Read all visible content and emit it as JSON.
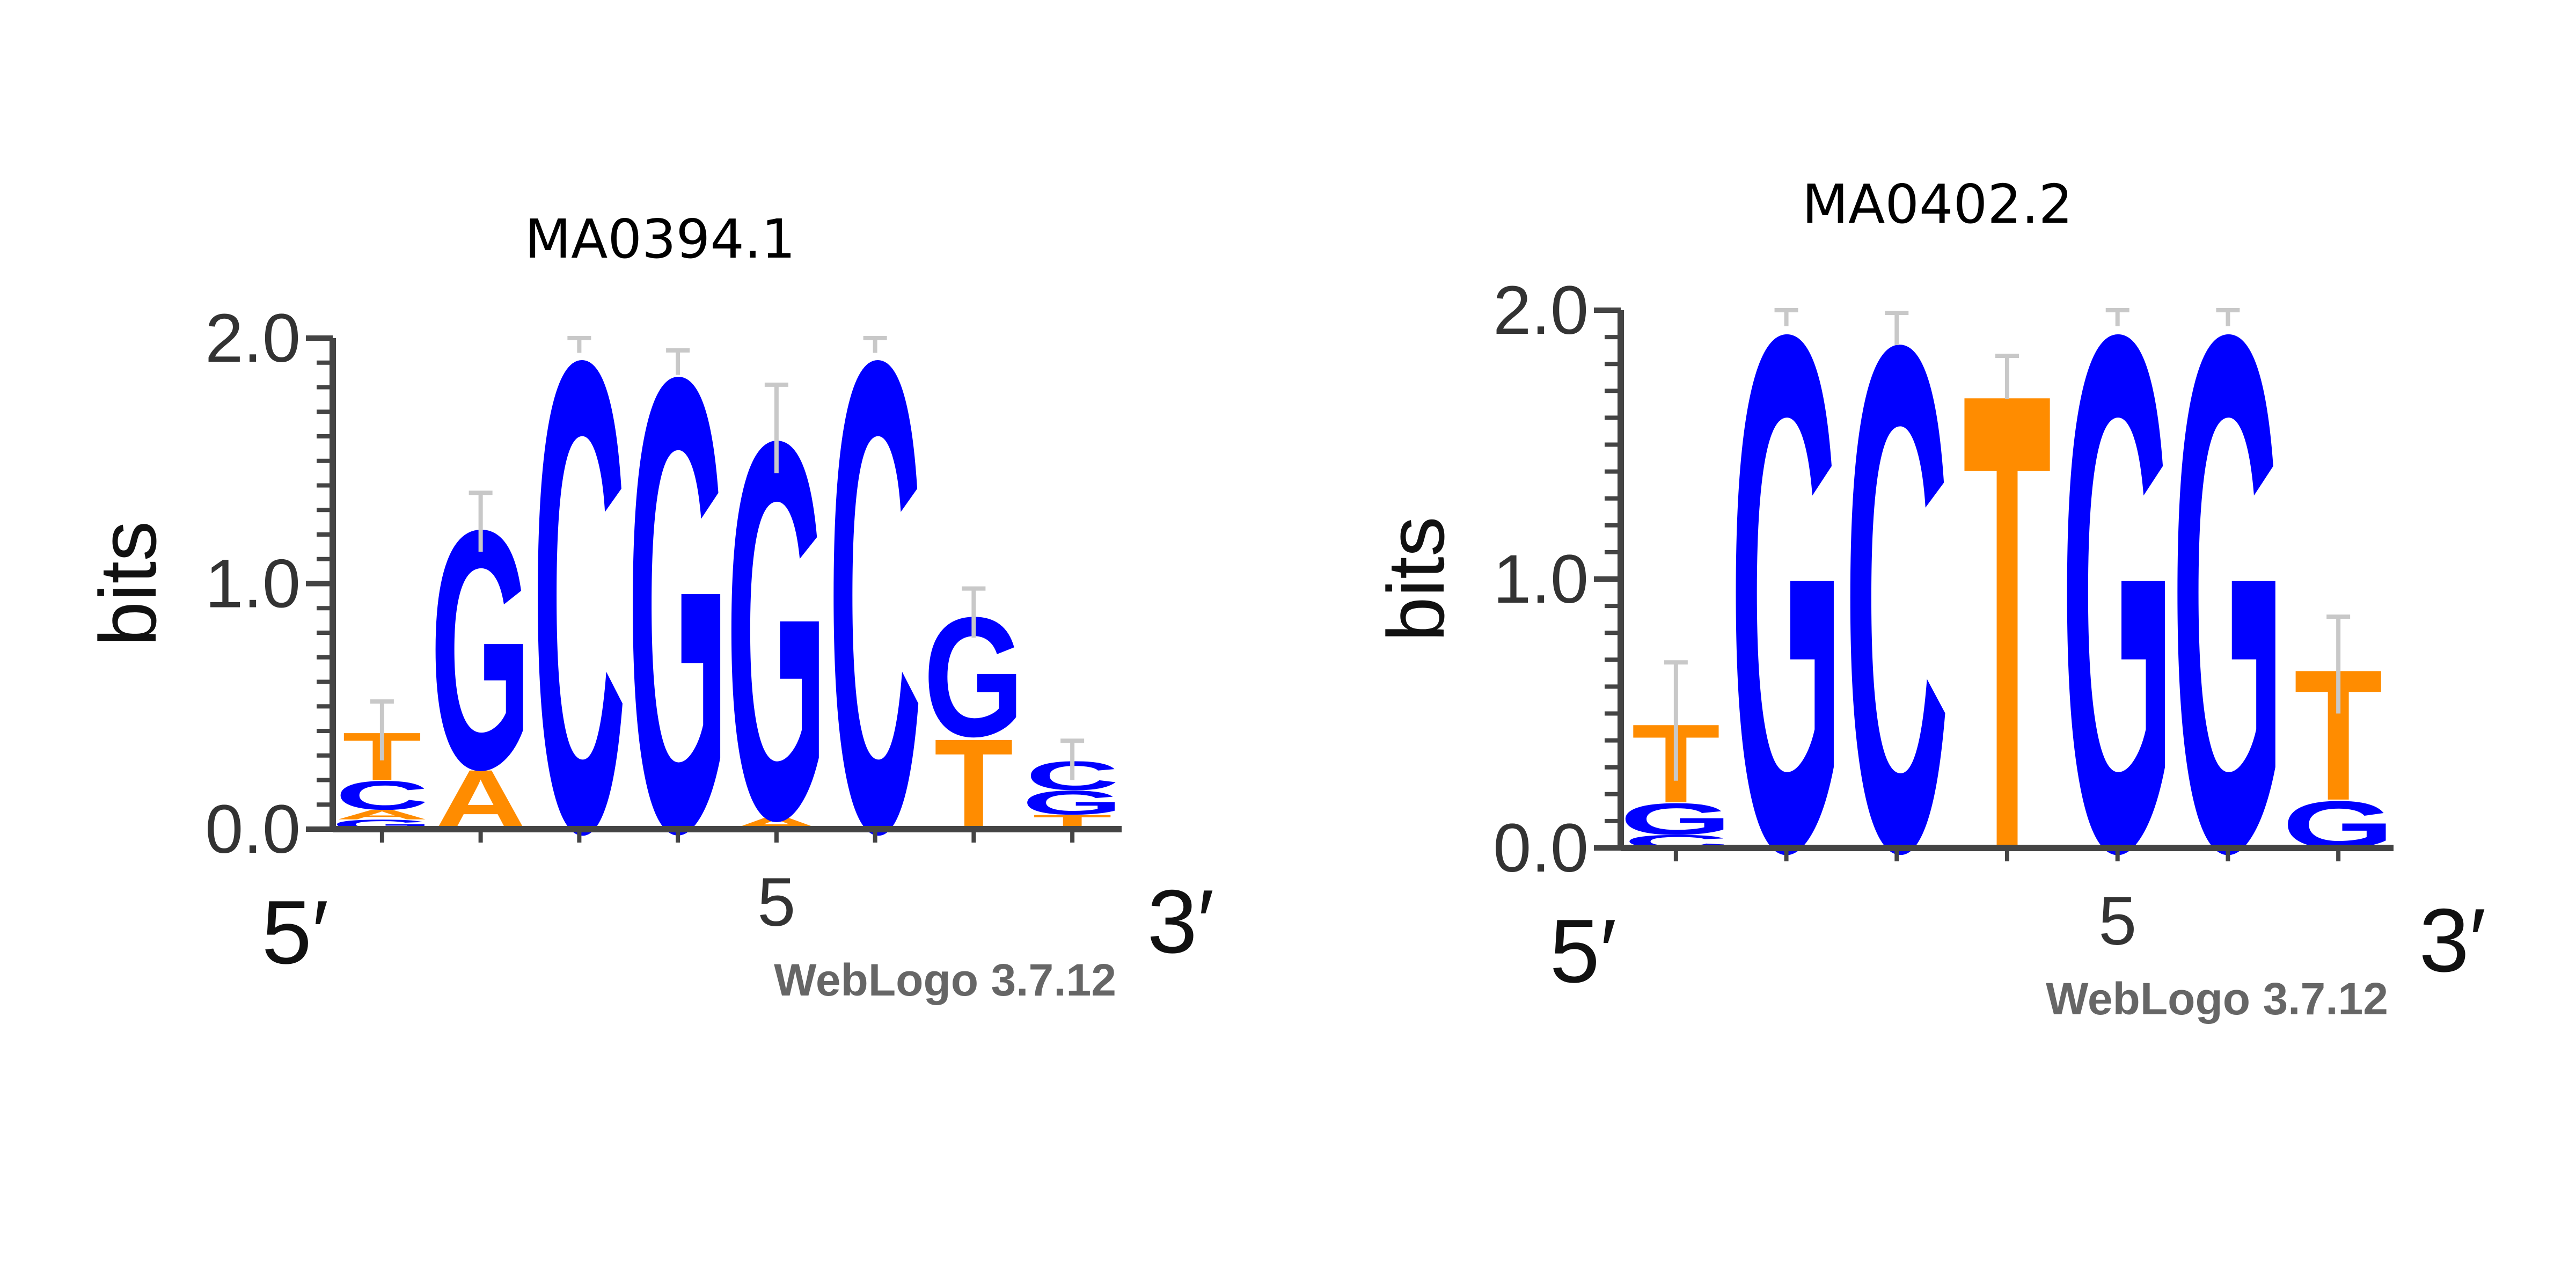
{
  "chart_data": [
    {
      "type": "sequence-logo",
      "title": "MA0394.1",
      "ylabel": "bits",
      "ylim": [
        0,
        2
      ],
      "yticks": [
        "0.0",
        "1.0",
        "2.0"
      ],
      "x_ticks": [
        {
          "position": 5,
          "label": "5"
        }
      ],
      "left_label": "5′",
      "right_label": "3′",
      "credit": "WebLogo 3.7.12",
      "positions": [
        {
          "pos": 1,
          "stack": [
            {
              "base": "G",
              "bits": 0.04
            },
            {
              "base": "A",
              "bits": 0.04
            },
            {
              "base": "C",
              "bits": 0.12
            },
            {
              "base": "T",
              "bits": 0.2
            }
          ],
          "error": 0.12
        },
        {
          "pos": 2,
          "stack": [
            {
              "base": "A",
              "bits": 0.25
            },
            {
              "base": "G",
              "bits": 1.0
            }
          ],
          "error": 0.12
        },
        {
          "pos": 3,
          "stack": [
            {
              "base": "C",
              "bits": 1.97
            }
          ],
          "error": 0.03
        },
        {
          "pos": 4,
          "stack": [
            {
              "base": "G",
              "bits": 1.9
            }
          ],
          "error": 0.05
        },
        {
          "pos": 5,
          "stack": [
            {
              "base": "A",
              "bits": 0.05
            },
            {
              "base": "G",
              "bits": 1.58
            }
          ],
          "error": 0.18
        },
        {
          "pos": 6,
          "stack": [
            {
              "base": "C",
              "bits": 1.97
            }
          ],
          "error": 0.03
        },
        {
          "pos": 7,
          "stack": [
            {
              "base": "T",
              "bits": 0.38
            },
            {
              "base": "G",
              "bits": 0.5
            }
          ],
          "error": 0.1
        },
        {
          "pos": 8,
          "stack": [
            {
              "base": "T",
              "bits": 0.06
            },
            {
              "base": "G",
              "bits": 0.1
            },
            {
              "base": "C",
              "bits": 0.12
            }
          ],
          "error": 0.08
        }
      ]
    },
    {
      "type": "sequence-logo",
      "title": "MA0402.2",
      "ylabel": "bits",
      "ylim": [
        0,
        2
      ],
      "yticks": [
        "0.0",
        "1.0",
        "2.0"
      ],
      "x_ticks": [
        {
          "position": 5,
          "label": "5"
        }
      ],
      "left_label": "5′",
      "right_label": "3′",
      "credit": "WebLogo 3.7.12",
      "positions": [
        {
          "pos": 1,
          "stack": [
            {
              "base": "C",
              "bits": 0.05
            },
            {
              "base": "G",
              "bits": 0.12
            },
            {
              "base": "T",
              "bits": 0.3
            }
          ],
          "error": 0.22
        },
        {
          "pos": 2,
          "stack": [
            {
              "base": "G",
              "bits": 1.97
            }
          ],
          "error": 0.03
        },
        {
          "pos": 3,
          "stack": [
            {
              "base": "C",
              "bits": 1.93
            }
          ],
          "error": 0.06
        },
        {
          "pos": 4,
          "stack": [
            {
              "base": "T",
              "bits": 1.75
            }
          ],
          "error": 0.08
        },
        {
          "pos": 5,
          "stack": [
            {
              "base": "G",
              "bits": 1.97
            }
          ],
          "error": 0.03
        },
        {
          "pos": 6,
          "stack": [
            {
              "base": "G",
              "bits": 1.97
            }
          ],
          "error": 0.03
        },
        {
          "pos": 7,
          "stack": [
            {
              "base": "G",
              "bits": 0.18
            },
            {
              "base": "T",
              "bits": 0.5
            }
          ],
          "error": 0.18
        }
      ]
    }
  ],
  "colors": {
    "A": "#ff8c00",
    "C": "#0000ff",
    "G": "#0000ff",
    "T": "#ff8c00",
    "errorbar": "#c8c8c8",
    "axis": "#444444"
  }
}
